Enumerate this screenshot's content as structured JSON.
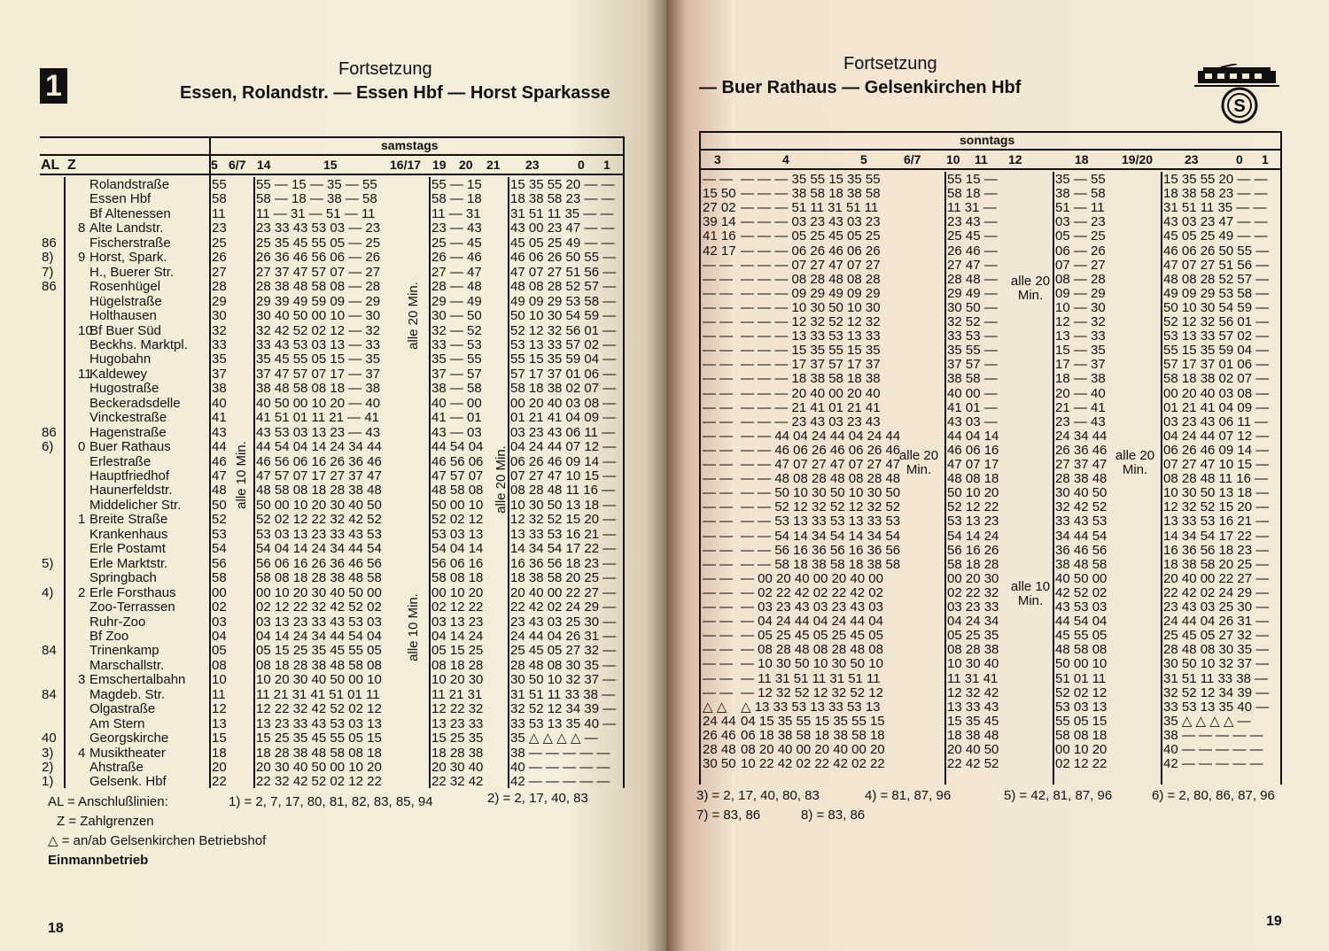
{
  "left": {
    "line_number": "1",
    "continued": "Fortsetzung",
    "route": "Essen, Rolandstr. — Essen Hbf — Horst Sparkasse",
    "day": "samstags",
    "headers": {
      "al": "AL",
      "z": "Z",
      "h5": "5",
      "h67": "6/7",
      "h14": "14",
      "h15": "15",
      "h1617": "16/17",
      "h19": "19",
      "h20": "20",
      "h21": "21",
      "h23": "23",
      "h0": "0",
      "h1": "1"
    },
    "interval_notes": [
      "alle 10 Min.",
      "alle 20 Min.",
      "alle 10 Min.",
      "alle 20 Min."
    ],
    "rows": [
      [
        "",
        "",
        "Rolandstraße",
        "55",
        "55 — 15 — 35 — 55",
        "55 — 15",
        "15 35 55 20 — —"
      ],
      [
        "",
        "",
        "Essen Hbf",
        "58",
        "58 — 18 — 38 — 58",
        "58 — 18",
        "18 38 58 23 — —"
      ],
      [
        "",
        "",
        "Bf Altenessen",
        "11",
        "11 — 31 — 51 — 11",
        "11 — 31",
        "31 51 11 35 — —"
      ],
      [
        "",
        "8",
        "Alte Landstr.",
        "23",
        "23 33 43 53 03 — 23",
        "23 — 43",
        "43 00 23 47 — —"
      ],
      [
        "86",
        "",
        "Fischerstraße",
        "25",
        "25 35 45 55 05 — 25",
        "25 — 45",
        "45 05 25 49 — —"
      ],
      [
        "8)",
        "9",
        "Horst, Spark.",
        "26",
        "26 36 46 56 06 — 26",
        "26 — 46",
        "46 06 26 50 55 —"
      ],
      [
        "7)",
        "",
        "H., Buerer Str.",
        "27",
        "27 37 47 57 07 — 27",
        "27 — 47",
        "47 07 27 51 56 —"
      ],
      [
        "86",
        "",
        "Rosenhügel",
        "28",
        "28 38 48 58 08 — 28",
        "28 — 48",
        "48 08 28 52 57 —"
      ],
      [
        "",
        "",
        "Hügelstraße",
        "29",
        "29 39 49 59 09 — 29",
        "29 — 49",
        "49 09 29 53 58 —"
      ],
      [
        "",
        "",
        "Holthausen",
        "30",
        "30 40 50 00 10 — 30",
        "30 — 50",
        "50 10 30 54 59 —"
      ],
      [
        "",
        "10",
        "Bf Buer Süd",
        "32",
        "32 42 52 02 12 — 32",
        "32 — 52",
        "52 12 32 56 01 —"
      ],
      [
        "",
        "",
        "Beckhs. Marktpl.",
        "33",
        "33 43 53 03 13 — 33",
        "33 — 53",
        "53 13 33 57 02 —"
      ],
      [
        "",
        "",
        "Hugobahn",
        "35",
        "35 45 55 05 15 — 35",
        "35 — 55",
        "55 15 35 59 04 —"
      ],
      [
        "",
        "11",
        "Kaldewey",
        "37",
        "37 47 57 07 17 — 37",
        "37 — 57",
        "57 17 37 01 06 —"
      ],
      [
        "",
        "",
        "Hugostraße",
        "38",
        "38 48 58 08 18 — 38",
        "38 — 58",
        "58 18 38 02 07 —"
      ],
      [
        "",
        "",
        "Beckeradsdelle",
        "40",
        "40 50 00 10 20 — 40",
        "40 — 00",
        "00 20 40 03 08 —"
      ],
      [
        "",
        "",
        "Vinckestraße",
        "41",
        "41 51 01 11 21 — 41",
        "41 — 01",
        "01 21 41 04 09 —"
      ],
      [
        "86",
        "",
        "Hagenstraße",
        "43",
        "43 53 03 13 23 — 43",
        "43 — 03",
        "03 23 43 06 11 —"
      ],
      [
        "6)",
        "0",
        "Buer Rathaus",
        "44",
        "44 54 04 14 24 34 44",
        "44 54 04",
        "04 24 44 07 12 —"
      ],
      [
        "",
        "",
        "Erlestraße",
        "46",
        "46 56 06 16 26 36 46",
        "46 56 06",
        "06 26 46 09 14 —"
      ],
      [
        "",
        "",
        "Hauptfriedhof",
        "47",
        "47 57 07 17 27 37 47",
        "47 57 07",
        "07 27 47 10 15 —"
      ],
      [
        "",
        "",
        "Haunerfeldstr.",
        "48",
        "48 58 08 18 28 38 48",
        "48 58 08",
        "08 28 48 11 16 —"
      ],
      [
        "",
        "",
        "Middelicher Str.",
        "50",
        "50 00 10 20 30 40 50",
        "50 00 10",
        "10 30 50 13 18 —"
      ],
      [
        "",
        "1",
        "Breite Straße",
        "52",
        "52 02 12 22 32 42 52",
        "52 02 12",
        "12 32 52 15 20 —"
      ],
      [
        "",
        "",
        "Krankenhaus",
        "53",
        "53 03 13 23 33 43 53",
        "53 03 13",
        "13 33 53 16 21 —"
      ],
      [
        "",
        "",
        "Erle Postamt",
        "54",
        "54 04 14 24 34 44 54",
        "54 04 14",
        "14 34 54 17 22 —"
      ],
      [
        "5)",
        "",
        "Erle Marktstr.",
        "56",
        "56 06 16 26 36 46 56",
        "56 06 16",
        "16 36 56 18 23 —"
      ],
      [
        "",
        "",
        "Springbach",
        "58",
        "58 08 18 28 38 48 58",
        "58 08 18",
        "18 38 58 20 25 —"
      ],
      [
        "4)",
        "2",
        "Erle Forsthaus",
        "00",
        "00 10 20 30 40 50 00",
        "00 10 20",
        "20 40 00 22 27 —"
      ],
      [
        "",
        "",
        "Zoo-Terrassen",
        "02",
        "02 12 22 32 42 52 02",
        "02 12 22",
        "22 42 02 24 29 —"
      ],
      [
        "",
        "",
        "Ruhr-Zoo",
        "03",
        "03 13 23 33 43 53 03",
        "03 13 23",
        "23 43 03 25 30 —"
      ],
      [
        "",
        "",
        "Bf Zoo",
        "04",
        "04 14 24 34 44 54 04",
        "04 14 24",
        "24 44 04 26 31 —"
      ],
      [
        "84",
        "",
        "Trinenkamp",
        "05",
        "05 15 25 35 45 55 05",
        "05 15 25",
        "25 45 05 27 32 —"
      ],
      [
        "",
        "",
        "Marschallstr.",
        "08",
        "08 18 28 38 48 58 08",
        "08 18 28",
        "28 48 08 30 35 —"
      ],
      [
        "",
        "3",
        "Emschertalbahn",
        "10",
        "10 20 30 40 50 00 10",
        "10 20 30",
        "30 50 10 32 37 —"
      ],
      [
        "84",
        "",
        "Magdeb. Str.",
        "11",
        "11 21 31 41 51 01 11",
        "11 21 31",
        "31 51 11 33 38 —"
      ],
      [
        "",
        "",
        "Olgastraße",
        "12",
        "12 22 32 42 52 02 12",
        "12 22 32",
        "32 52 12 34 39 —"
      ],
      [
        "",
        "",
        "Am Stern",
        "13",
        "13 23 33 43 53 03 13",
        "13 23 33",
        "33 53 13 35 40 —"
      ],
      [
        "40",
        "",
        "Georgskirche",
        "15",
        "15 25 35 45 55 05 15",
        "15 25 35",
        "35 △ △ △ △ —"
      ],
      [
        "3)",
        "4",
        "Musiktheater",
        "18",
        "18 28 38 48 58 08 18",
        "18 28 38",
        "38 — — — — —"
      ],
      [
        "2)",
        "",
        "Ahstraße",
        "20",
        "20 30 40 50 00 10 20",
        "20 30 40",
        "40 — — — — —"
      ],
      [
        "1)",
        "",
        "Gelsenk. Hbf",
        "22",
        "22 32 42 52 02 12 22",
        "22 32 42",
        "42 — — — — —"
      ]
    ],
    "legend": {
      "al": "AL = Anschlußlinien:",
      "n1": "1) = 2, 7, 17, 80, 81, 82, 83, 85, 94",
      "n2": "2) = 2, 17, 40, 83",
      "z": "Z = Zahlgrenzen",
      "triangle": "△ = an/ab Gelsenkirchen Betriebshof",
      "one_man": "Einmannbetrieb"
    },
    "page_number": "18"
  },
  "right": {
    "continued": "Fortsetzung",
    "route": "— Buer Rathaus — Gelsenkirchen Hbf",
    "day": "sonntags",
    "headers": {
      "h3": "3",
      "h4": "4",
      "h5": "5",
      "h67": "6/7",
      "h10": "10",
      "h11": "11",
      "h12": "12",
      "h18": "18",
      "h1920": "19/20",
      "h23": "23",
      "h0": "0",
      "h1": "1"
    },
    "interval_notes": [
      "alle 20 Min.",
      "alle 20 Min.",
      "alle 10 Min.",
      "alle 20 Min."
    ],
    "rows": [
      [
        "— —",
        "— — — 35 55 15 35 55",
        "55 15 —",
        "35 — 55",
        "15 35 55 20 — —"
      ],
      [
        "15 50",
        "— — — 38 58 18 38 58",
        "58 18 —",
        "38 — 58",
        "18 38 58 23 — —"
      ],
      [
        "27 02",
        "— — — 51 11 31 51 11",
        "11 31 —",
        "51 — 11",
        "31 51 11 35 — —"
      ],
      [
        "39 14",
        "— — — 03 23 43 03 23",
        "23 43 —",
        "03 — 23",
        "43 03 23 47 — —"
      ],
      [
        "41 16",
        "— — — 05 25 45 05 25",
        "25 45 —",
        "05 — 25",
        "45 05 25 49 — —"
      ],
      [
        "42 17",
        "— — — 06 26 46 06 26",
        "26 46 —",
        "06 — 26",
        "46 06 26 50 55 —"
      ],
      [
        "— —",
        "— — — 07 27 47 07 27",
        "27 47 —",
        "07 — 27",
        "47 07 27 51 56 —"
      ],
      [
        "— —",
        "— — — 08 28 48 08 28",
        "28 48 —",
        "08 — 28",
        "48 08 28 52 57 —"
      ],
      [
        "— —",
        "— — — 09 29 49 09 29",
        "29 49 —",
        "09 — 29",
        "49 09 29 53 58 —"
      ],
      [
        "— —",
        "— — — 10 30 50 10 30",
        "30 50 —",
        "10 — 30",
        "50 10 30 54 59 —"
      ],
      [
        "— —",
        "— — — 12 32 52 12 32",
        "32 52 —",
        "12 — 32",
        "52 12 32 56 01 —"
      ],
      [
        "— —",
        "— — — 13 33 53 13 33",
        "33 53 —",
        "13 — 33",
        "53 13 33 57 02 —"
      ],
      [
        "— —",
        "— — — 15 35 55 15 35",
        "35 55 —",
        "15 — 35",
        "55 15 35 59 04 —"
      ],
      [
        "— —",
        "— — — 17 37 57 17 37",
        "37 57 —",
        "17 — 37",
        "57 17 37 01 06 —"
      ],
      [
        "— —",
        "— — — 18 38 58 18 38",
        "38 58 —",
        "18 — 38",
        "58 18 38 02 07 —"
      ],
      [
        "— —",
        "— — — 20 40 00 20 40",
        "40 00 —",
        "20 — 40",
        "00 20 40 03 08 —"
      ],
      [
        "— —",
        "— — — 21 41 01 21 41",
        "41 01 —",
        "21 — 41",
        "01 21 41 04 09 —"
      ],
      [
        "— —",
        "— — — 23 43 03 23 43",
        "43 03 —",
        "23 — 43",
        "03 23 43 06 11 —"
      ],
      [
        "— —",
        "— — 44 04 24 44 04 24 44",
        "44 04 14",
        "24 34 44",
        "04 24 44 07 12 —"
      ],
      [
        "— —",
        "— — 46 06 26 46 06 26 46",
        "46 06 16",
        "26 36 46",
        "06 26 46 09 14 —"
      ],
      [
        "— —",
        "— — 47 07 27 47 07 27 47",
        "47 07 17",
        "27 37 47",
        "07 27 47 10 15 —"
      ],
      [
        "— —",
        "— — 48 08 28 48 08 28 48",
        "48 08 18",
        "28 38 48",
        "08 28 48 11 16 —"
      ],
      [
        "— —",
        "— — 50 10 30 50 10 30 50",
        "50 10 20",
        "30 40 50",
        "10 30 50 13 18 —"
      ],
      [
        "— —",
        "— — 52 12 32 52 12 32 52",
        "52 12 22",
        "32 42 52",
        "12 32 52 15 20 —"
      ],
      [
        "— —",
        "— — 53 13 33 53 13 33 53",
        "53 13 23",
        "33 43 53",
        "13 33 53 16 21 —"
      ],
      [
        "— —",
        "— — 54 14 34 54 14 34 54",
        "54 14 24",
        "34 44 54",
        "14 34 54 17 22 —"
      ],
      [
        "— —",
        "— — 56 16 36 56 16 36 56",
        "56 16 26",
        "36 46 56",
        "16 36 56 18 23 —"
      ],
      [
        "— —",
        "— — 58 18 38 58 18 38 58",
        "58 18 28",
        "38 48 58",
        "18 38 58 20 25 —"
      ],
      [
        "— —",
        "— 00 20 40 00 20 40 00",
        "00 20 30",
        "40 50 00",
        "20 40 00 22 27 —"
      ],
      [
        "— —",
        "— 02 22 42 02 22 42 02",
        "02 22 32",
        "42 52 02",
        "22 42 02 24 29 —"
      ],
      [
        "— —",
        "— 03 23 43 03 23 43 03",
        "03 23 33",
        "43 53 03",
        "23 43 03 25 30 —"
      ],
      [
        "— —",
        "— 04 24 44 04 24 44 04",
        "04 24 34",
        "44 54 04",
        "24 44 04 26 31 —"
      ],
      [
        "— —",
        "— 05 25 45 05 25 45 05",
        "05 25 35",
        "45 55 05",
        "25 45 05 27 32 —"
      ],
      [
        "— —",
        "— 08 28 48 08 28 48 08",
        "08 28 38",
        "48 58 08",
        "28 48 08 30 35 —"
      ],
      [
        "— —",
        "— 10 30 50 10 30 50 10",
        "10 30 40",
        "50 00 10",
        "30 50 10 32 37 —"
      ],
      [
        "— —",
        "— 11 31 51 11 31 51 11",
        "11 31 41",
        "51 01 11",
        "31 51 11 33 38 —"
      ],
      [
        "— —",
        "— 12 32 52 12 32 52 12",
        "12 32 42",
        "52 02 12",
        "32 52 12 34 39 —"
      ],
      [
        "△ △",
        "△ 13 33 53 13 33 53 13",
        "13 33 43",
        "53 03 13",
        "33 53 13 35 40 —"
      ],
      [
        "24 44",
        "04 15 35 55 15 35 55 15",
        "15 35 45",
        "55 05 15",
        "35 △ △ △ △ —"
      ],
      [
        "26 46",
        "06 18 38 58 18 38 58 18",
        "18 38 48",
        "58 08 18",
        "38 — — — — —"
      ],
      [
        "28 48",
        "08 20 40 00 20 40 00 20",
        "20 40 50",
        "00 10 20",
        "40 — — — — —"
      ],
      [
        "30 50",
        "10 22 42 02 22 42 02 22",
        "22 42 52",
        "02 12 22",
        "42 — — — — —"
      ]
    ],
    "legend": {
      "n3": "3) = 2, 17, 40, 80, 83",
      "n4": "4) = 81, 87, 96",
      "n5": "5) = 42, 81, 87, 96",
      "n6": "6) = 2, 80, 86, 87, 96",
      "n7": "7) = 83, 86",
      "n8": "8) = 83, 86"
    },
    "icons": [
      "tram-icon",
      "transit-company-logo"
    ],
    "page_number": "19"
  }
}
